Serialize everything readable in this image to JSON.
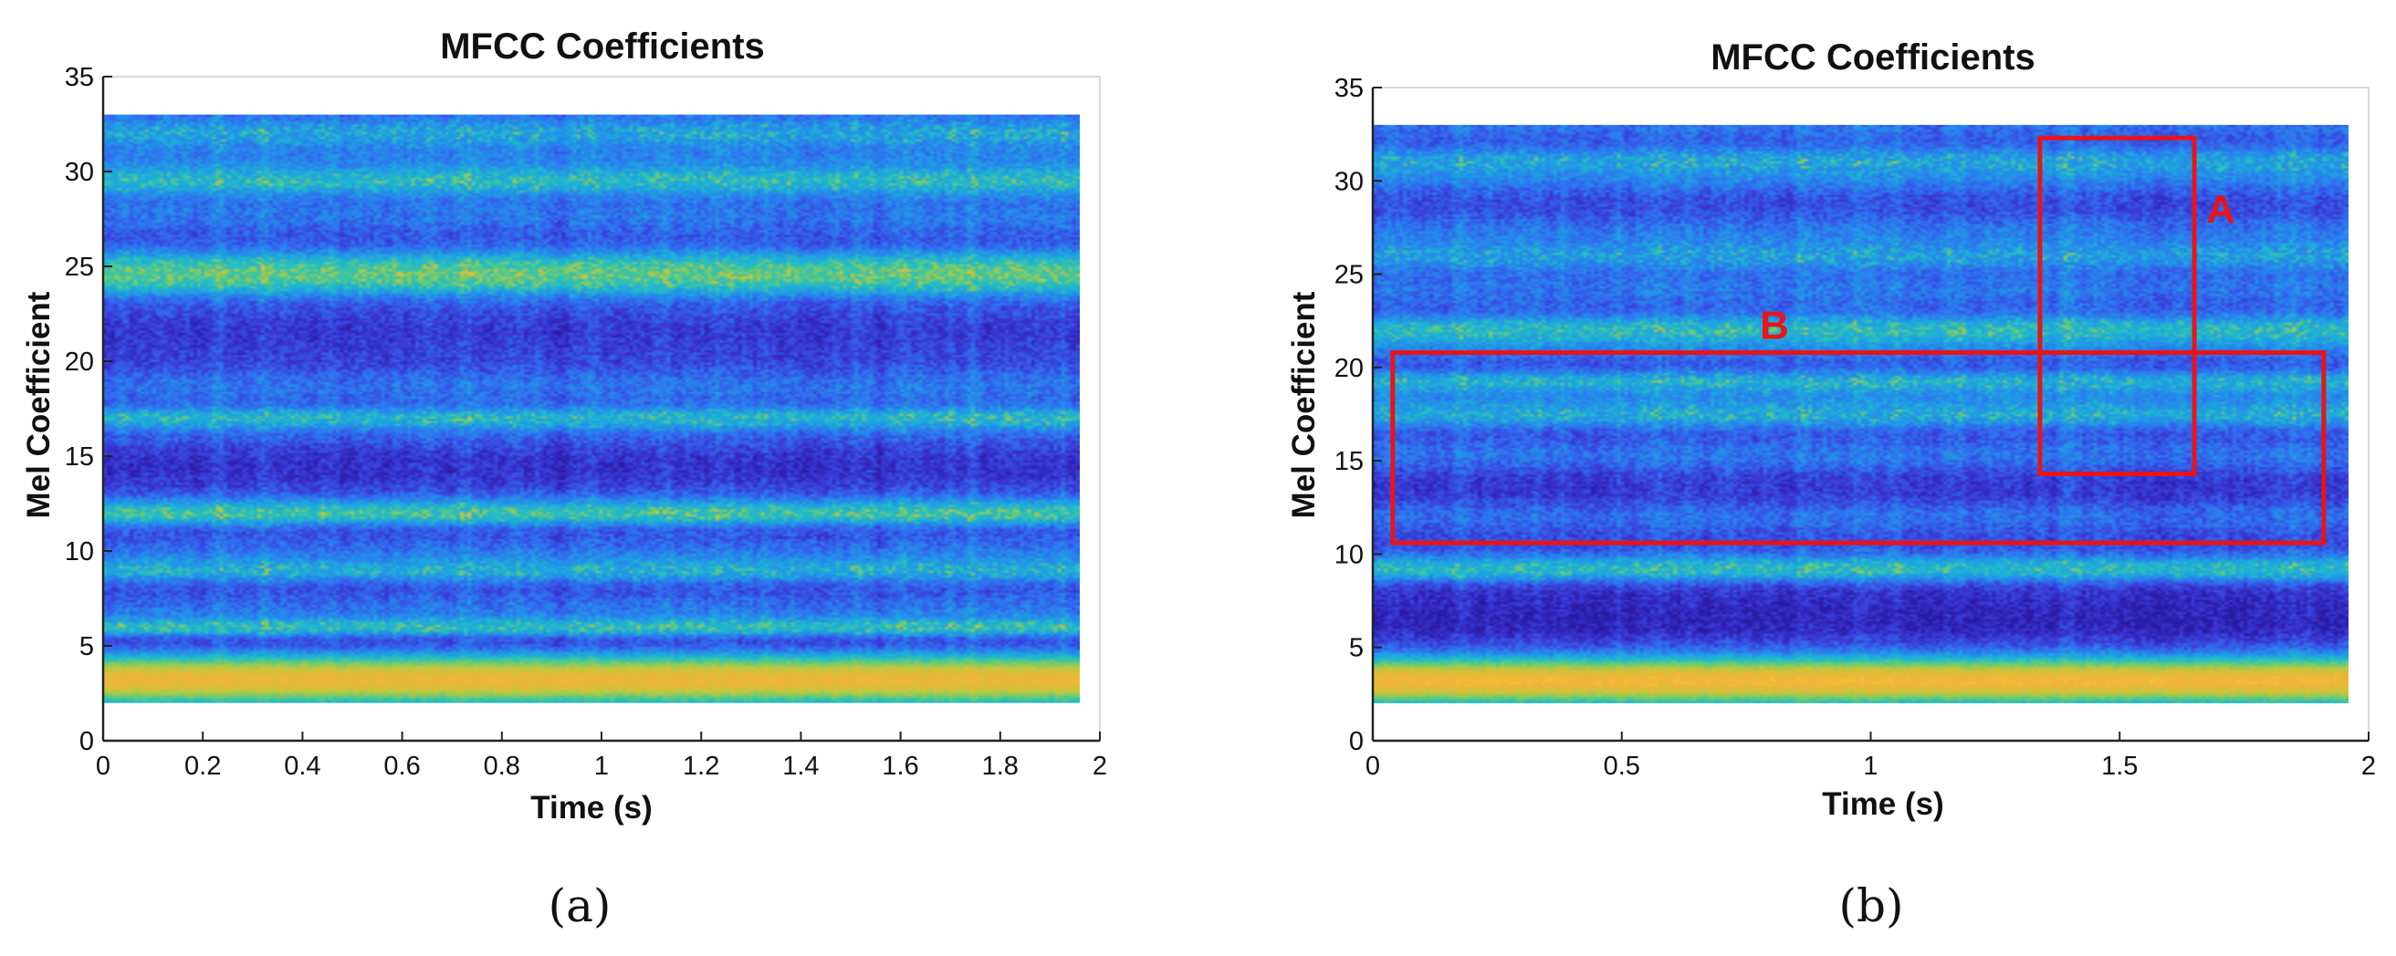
{
  "chart_data": [
    {
      "type": "heatmap",
      "panel_label": "(a)",
      "title": "MFCC Coefficients",
      "xlabel": "Time (s)",
      "ylabel": "Mel Coefficient",
      "xlim": [
        0,
        2
      ],
      "ylim": [
        0,
        35
      ],
      "xticks": [
        0,
        0.2,
        0.4,
        0.6,
        0.8,
        1,
        1.2,
        1.4,
        1.6,
        1.8,
        2
      ],
      "xtick_labels": [
        "0",
        "0.2",
        "0.4",
        "0.6",
        "0.8",
        "1",
        "1.2",
        "1.4",
        "1.6",
        "1.8",
        "2"
      ],
      "yticks": [
        0,
        5,
        10,
        15,
        20,
        25,
        30,
        35
      ],
      "ytick_labels": [
        "0",
        "5",
        "10",
        "15",
        "20",
        "25",
        "30",
        "35"
      ],
      "data_extent": {
        "x": [
          0,
          1.96
        ],
        "y": [
          2,
          33
        ]
      },
      "colormap": "parula",
      "colormap_stops": [
        "#2a1aa5",
        "#3b3ad8",
        "#2f72f0",
        "#1ea2e3",
        "#25c0c0",
        "#72cc6a",
        "#c9c63a",
        "#f2b33a",
        "#f9e02a"
      ],
      "bright_bands": [
        {
          "coef": 3.2,
          "level": 0.86,
          "width": 1.3
        },
        {
          "coef": 6.0,
          "level": 0.42,
          "width": 0.5
        },
        {
          "coef": 9.0,
          "level": 0.35,
          "width": 0.6
        },
        {
          "coef": 12.0,
          "level": 0.46,
          "width": 0.6
        },
        {
          "coef": 17.0,
          "level": 0.38,
          "width": 0.6
        },
        {
          "coef": 24.6,
          "level": 0.52,
          "width": 1.1
        },
        {
          "coef": 29.5,
          "level": 0.4,
          "width": 0.8
        },
        {
          "coef": 32.0,
          "level": 0.32,
          "width": 0.8
        }
      ],
      "dark_bands": [
        {
          "coef": 5.3,
          "level": 0.08,
          "width": 0.8
        },
        {
          "coef": 14.5,
          "level": 0.1,
          "width": 1.5
        },
        {
          "coef": 21.5,
          "level": 0.12,
          "width": 1.5
        }
      ],
      "noise_seed": 11,
      "annotations": []
    },
    {
      "type": "heatmap",
      "panel_label": "(b)",
      "title": "MFCC Coefficients",
      "xlabel": "Time (s)",
      "ylabel": "Mel Coefficient",
      "xlim": [
        0,
        2
      ],
      "ylim": [
        0,
        35
      ],
      "xticks": [
        0,
        0.5,
        1,
        1.5,
        2
      ],
      "xtick_labels": [
        "0",
        "0.5",
        "1",
        "1.5",
        "2"
      ],
      "yticks": [
        0,
        5,
        10,
        15,
        20,
        25,
        30,
        35
      ],
      "ytick_labels": [
        "0",
        "5",
        "10",
        "15",
        "20",
        "25",
        "30",
        "35"
      ],
      "data_extent": {
        "x": [
          0,
          1.96
        ],
        "y": [
          2,
          33
        ]
      },
      "colormap": "parula",
      "colormap_stops": [
        "#2a1aa5",
        "#3b3ad8",
        "#2f72f0",
        "#1ea2e3",
        "#25c0c0",
        "#72cc6a",
        "#c9c63a",
        "#f2b33a",
        "#f9e02a"
      ],
      "bright_bands": [
        {
          "coef": 3.2,
          "level": 0.88,
          "width": 1.3
        },
        {
          "coef": 9.2,
          "level": 0.4,
          "width": 0.6
        },
        {
          "coef": 17.5,
          "level": 0.34,
          "width": 0.7
        },
        {
          "coef": 19.2,
          "level": 0.36,
          "width": 0.6
        },
        {
          "coef": 22.0,
          "level": 0.4,
          "width": 0.8
        },
        {
          "coef": 26.0,
          "level": 0.3,
          "width": 0.8
        },
        {
          "coef": 31.0,
          "level": 0.32,
          "width": 0.8
        }
      ],
      "dark_bands": [
        {
          "coef": 6.5,
          "level": 0.05,
          "width": 2.0
        },
        {
          "coef": 13.5,
          "level": 0.12,
          "width": 1.0
        }
      ],
      "noise_seed": 23,
      "annotations": [
        {
          "label": "A",
          "color": "#e8141b",
          "x0": 1.34,
          "x1": 1.65,
          "y0": 14.3,
          "y1": 32.3,
          "label_anchor": "right"
        },
        {
          "label": "B",
          "color": "#e8141b",
          "x0": 0.04,
          "x1": 1.91,
          "y0": 10.6,
          "y1": 20.8,
          "label_anchor": "top"
        }
      ]
    }
  ]
}
